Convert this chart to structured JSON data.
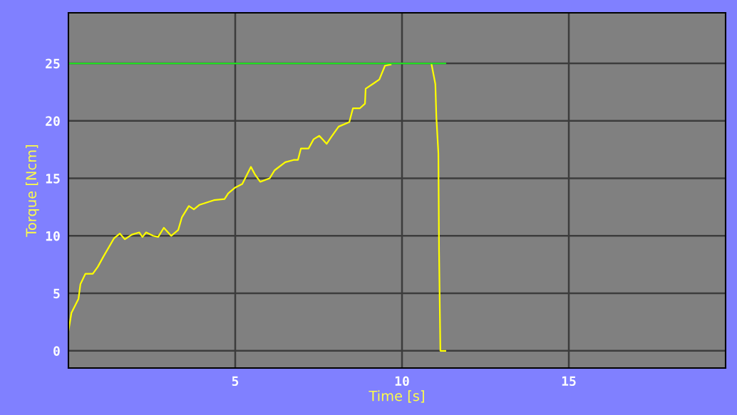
{
  "chart_data": {
    "type": "line",
    "xlabel": "Time [s]",
    "ylabel": "Torque [Ncm]",
    "xlim": [
      0,
      19.7
    ],
    "ylim": [
      -1.5,
      29.4
    ],
    "xticks": [
      5,
      10,
      15
    ],
    "yticks": [
      0,
      5,
      10,
      15,
      20,
      25
    ],
    "grid": true,
    "marker": "none",
    "line_style": "solid",
    "series": [
      {
        "color": "#ffff00",
        "x": [
          0,
          0.09,
          0.3,
          0.36,
          0.51,
          0.73,
          0.88,
          1.05,
          1.37,
          1.54,
          1.69,
          1.9,
          2.12,
          2.22,
          2.33,
          2.54,
          2.69,
          2.86,
          3.08,
          3.29,
          3.4,
          3.61,
          3.76,
          3.93,
          4.36,
          4.68,
          4.79,
          5.0,
          5.21,
          5.47,
          5.6,
          5.75,
          6.03,
          6.18,
          6.5,
          6.75,
          6.88,
          6.97,
          7.2,
          7.35,
          7.52,
          7.74,
          7.88,
          8.1,
          8.42,
          8.53,
          8.74,
          8.89,
          8.91,
          9.17,
          9.32,
          9.49,
          9.66,
          10.3,
          10.88,
          10.94,
          11.0,
          11.03,
          11.09,
          11.11,
          11.15,
          11.3
        ],
        "values": [
          1.7,
          3.3,
          4.5,
          5.8,
          6.7,
          6.7,
          7.3,
          8.2,
          9.8,
          10.2,
          9.7,
          10.1,
          10.3,
          9.9,
          10.3,
          10.0,
          9.9,
          10.7,
          10.0,
          10.5,
          11.6,
          12.6,
          12.3,
          12.7,
          13.1,
          13.2,
          13.7,
          14.2,
          14.5,
          16.0,
          15.3,
          14.7,
          15.0,
          15.7,
          16.4,
          16.6,
          16.6,
          17.6,
          17.6,
          18.4,
          18.7,
          18.0,
          18.6,
          19.5,
          19.9,
          21.1,
          21.1,
          21.5,
          22.8,
          23.3,
          23.6,
          24.8,
          24.9,
          null,
          25.0,
          24.1,
          23.2,
          20.3,
          17.2,
          8.7,
          0,
          0
        ]
      },
      {
        "color": "#22dd22",
        "x": [
          0,
          11.3
        ],
        "values": [
          25,
          25
        ]
      }
    ]
  }
}
